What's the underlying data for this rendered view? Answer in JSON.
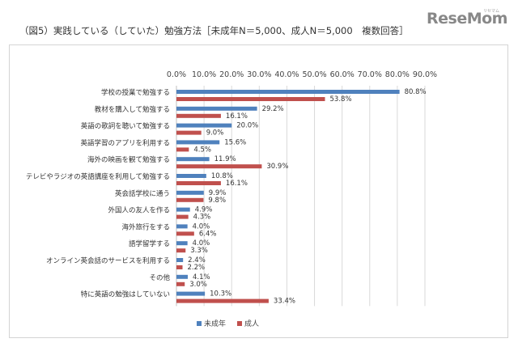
{
  "title": "（図5）実践している（していた）勉強方法［未成年N＝5,000、成人N＝5,000　複数回答］",
  "logo": {
    "main": "ReseMom",
    "sub": "リセマム"
  },
  "colors": {
    "minor": "#4F81BD",
    "adult": "#C0504D",
    "grid": "#d9d9d9",
    "axis": "#bfbfbf"
  },
  "chart_data": {
    "type": "bar",
    "orientation": "horizontal",
    "categories": [
      "学校の授業で勉強する",
      "教材を購入して勉強する",
      "英語の歌詞を聴いて勉強する",
      "英語学習のアプリを利用する",
      "海外の映画を観て勉強する",
      "テレビやラジオの英語講座を利用して勉強する",
      "英会話学校に通う",
      "外国人の友人を作る",
      "海外旅行をする",
      "語学留学する",
      "オンライン英会話のサービスを利用する",
      "その他",
      "特に英語の勉強はしていない"
    ],
    "series": [
      {
        "name": "未成年",
        "values": [
          80.8,
          29.2,
          20.0,
          15.6,
          11.9,
          10.8,
          9.9,
          4.9,
          4.0,
          4.0,
          2.4,
          4.1,
          10.3
        ],
        "labels": [
          "80.8%",
          "29.2%",
          "20.0%",
          "15.6%",
          "11.9%",
          "10.8%",
          "9.9%",
          "4.9%",
          "4.0%",
          "4.0%",
          "2.4%",
          "4.1%",
          "10.3%"
        ]
      },
      {
        "name": "成人",
        "values": [
          53.8,
          16.1,
          9.0,
          4.5,
          30.9,
          16.1,
          9.8,
          4.3,
          6.4,
          3.3,
          2.2,
          3.0,
          33.4
        ],
        "labels": [
          "53.8%",
          "16.1%",
          "9.0%",
          "4.5%",
          "30.9%",
          "16.1%",
          "9.8%",
          "4.3%",
          "6.4%",
          "3.3%",
          "2.2%",
          "3.0%",
          "33.4%"
        ]
      }
    ],
    "xlim": [
      0,
      90
    ],
    "ticks": [
      0,
      10,
      20,
      30,
      40,
      50,
      60,
      70,
      80,
      90
    ],
    "tick_labels": [
      "0.0%",
      "10.0%",
      "20.0%",
      "30.0%",
      "40.0%",
      "50.0%",
      "60.0%",
      "70.0%",
      "80.0%",
      "90.0%"
    ],
    "axis_position": "top",
    "grid": true,
    "legend_position": "bottom"
  }
}
